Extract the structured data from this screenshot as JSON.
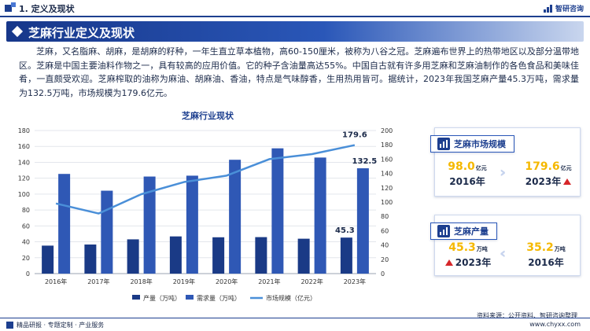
{
  "header": {
    "section_title": "1. 定义及现状",
    "brand": "智研咨询"
  },
  "banner": {
    "title": "芝麻行业定义及现状"
  },
  "paragraph": "芝麻，又名脂麻、胡麻，是胡麻的籽种，一年生直立草本植物，高60-150厘米，被称为八谷之冠。芝麻遍布世界上的热带地区以及部分温带地区。芝麻是中国主要油料作物之一，具有较高的应用价值。它的种子含油量高达55%。中国自古就有许多用芝麻和芝麻油制作的各色食品和美味佳肴，一直颇受欢迎。芝麻榨取的油称为麻油、胡麻油、香油，特点是气味醇香，生用热用皆可。据统计，2023年我国芝麻产量45.3万吨，需求量为132.5万吨，市场规模为179.6亿元。",
  "chart_data": {
    "type": "bar",
    "title": "芝麻行业现状",
    "categories": [
      "2016年",
      "2017年",
      "2018年",
      "2019年",
      "2020年",
      "2021年",
      "2022年",
      "2023年"
    ],
    "series": [
      {
        "name": "产量（万吨）",
        "kind": "bar",
        "axis": "left",
        "color": "#1a3a86",
        "values": [
          35.2,
          36.6,
          43.1,
          46.8,
          45.7,
          45.9,
          43.9,
          45.3
        ]
      },
      {
        "name": "需求量（万吨）",
        "kind": "bar",
        "axis": "left",
        "color": "#2f58b5",
        "values": [
          125.4,
          104.3,
          122.1,
          123.2,
          143.2,
          157.6,
          146.0,
          132.5
        ]
      },
      {
        "name": "市场规模（亿元）",
        "kind": "line",
        "axis": "right",
        "color": "#4a8fd8",
        "values": [
          98.0,
          84.0,
          111.0,
          128.0,
          137.0,
          160.0,
          167.0,
          179.6
        ]
      }
    ],
    "y_left": {
      "min": 0,
      "max": 180,
      "step": 20,
      "ticks": [
        "0",
        "20",
        "40",
        "60",
        "80",
        "100",
        "120",
        "140",
        "160",
        "180"
      ]
    },
    "y_right": {
      "min": 0,
      "max": 200,
      "step": 20,
      "ticks": [
        "0",
        "20",
        "40",
        "60",
        "80",
        "100",
        "120",
        "140",
        "160",
        "180",
        "200"
      ]
    },
    "data_labels": {
      "production_2023": "45.3",
      "demand_2023": "132.5",
      "market_2023": "179.6"
    },
    "grid": true,
    "legend": "bottom"
  },
  "market_card": {
    "title": "芝麻市场规模",
    "from_value": "98.0",
    "from_unit": "亿元",
    "from_year": "2016年",
    "to_value": "179.6",
    "to_unit": "亿元",
    "to_year": "2023年"
  },
  "production_card": {
    "title": "芝麻产量",
    "recent_value": "45.3",
    "recent_unit": "万吨",
    "recent_year": "2023年",
    "old_value": "35.2",
    "old_unit": "万吨",
    "old_year": "2016年"
  },
  "source": "资料来源：公开资料、智研咨询整理",
  "footer": {
    "left": "精品研报 · 专题定制 · 产业服务",
    "right": "www.chyxx.com"
  },
  "colors": {
    "primary": "#1d3f8f",
    "accent_yellow": "#f5b800",
    "up_red": "#d6262a"
  }
}
